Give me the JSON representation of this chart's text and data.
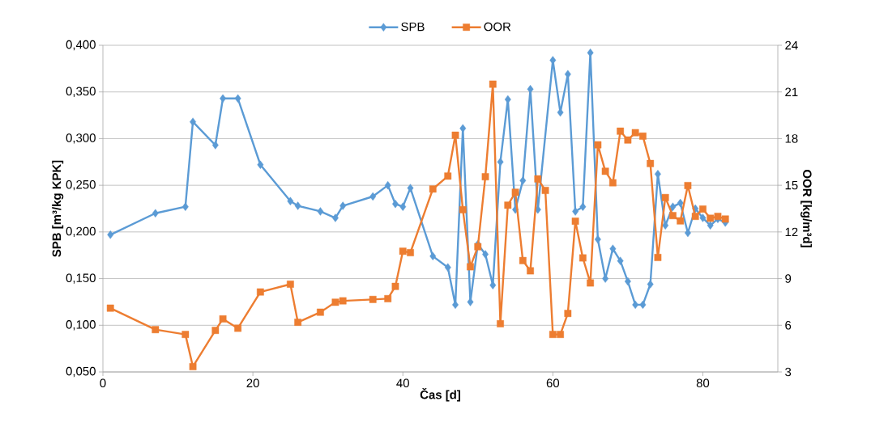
{
  "chart_data": {
    "type": "line",
    "xlabel": "Čas [d]",
    "ylabel": "SPB [m³/kg KPK]",
    "y2label": "OOR [kg/m³d]",
    "xlim": [
      0,
      90
    ],
    "xticks": [
      0,
      20,
      40,
      60,
      80
    ],
    "ylim": [
      0.05,
      0.4
    ],
    "yticks": [
      {
        "value": 0.05,
        "label": "0,050"
      },
      {
        "value": 0.1,
        "label": "0,100"
      },
      {
        "value": 0.15,
        "label": "0,150"
      },
      {
        "value": 0.2,
        "label": "0,200"
      },
      {
        "value": 0.25,
        "label": "0,250"
      },
      {
        "value": 0.3,
        "label": "0,300"
      },
      {
        "value": 0.35,
        "label": "0,350"
      },
      {
        "value": 0.4,
        "label": "0,400"
      }
    ],
    "y2lim": [
      3,
      24
    ],
    "y2ticks": [
      3,
      6,
      9,
      12,
      15,
      18,
      21,
      24
    ],
    "grid": "y",
    "legend": "top",
    "series": [
      {
        "name": "SPB",
        "color": "#5b9bd5",
        "marker": "diamond",
        "x": [
          1,
          7,
          11,
          12,
          15,
          16,
          18,
          21,
          25,
          26,
          29,
          31,
          32,
          36,
          38,
          39,
          40,
          41,
          44,
          46,
          47,
          48,
          49,
          50,
          51,
          52,
          53,
          54,
          55,
          56,
          57,
          58,
          60,
          61,
          62,
          63,
          64,
          65,
          66,
          67,
          68,
          69,
          70,
          71,
          72,
          73,
          74,
          75,
          76,
          77,
          78,
          79,
          80,
          81,
          82,
          83
        ],
        "values": [
          0.197,
          0.22,
          0.227,
          0.318,
          0.293,
          0.343,
          0.343,
          0.272,
          0.233,
          0.228,
          0.222,
          0.215,
          0.228,
          0.238,
          0.25,
          0.23,
          0.227,
          0.247,
          0.174,
          0.162,
          0.122,
          0.311,
          0.125,
          0.187,
          0.176,
          0.143,
          0.275,
          0.342,
          0.224,
          0.255,
          0.353,
          0.224,
          0.384,
          0.328,
          0.369,
          0.222,
          0.227,
          0.392,
          0.192,
          0.15,
          0.182,
          0.169,
          0.147,
          0.122,
          0.122,
          0.144,
          0.262,
          0.207,
          0.227,
          0.231,
          0.199,
          0.225,
          0.215,
          0.207,
          0.214,
          0.21
        ]
      },
      {
        "name": "OOR",
        "color": "#ed7d31",
        "marker": "square",
        "axis": "y2",
        "x": [
          1,
          7,
          11,
          12,
          15,
          16,
          18,
          21,
          25,
          26,
          29,
          31,
          32,
          36,
          38,
          39,
          40,
          41,
          44,
          46,
          47,
          48,
          49,
          50,
          51,
          52,
          53,
          54,
          55,
          56,
          57,
          58,
          59,
          60,
          61,
          62,
          63,
          64,
          65,
          66,
          67,
          68,
          69,
          70,
          71,
          72,
          73,
          74,
          75,
          76,
          77,
          78,
          79,
          80,
          81,
          82,
          83
        ],
        "values": [
          7.1,
          5.72,
          5.41,
          3.34,
          5.67,
          6.41,
          5.81,
          8.14,
          8.64,
          6.19,
          6.84,
          7.48,
          7.57,
          7.66,
          7.71,
          8.5,
          10.76,
          10.67,
          14.76,
          15.59,
          18.22,
          13.43,
          9.76,
          11.05,
          15.55,
          21.5,
          6.1,
          13.72,
          14.55,
          10.16,
          9.5,
          15.41,
          14.67,
          5.41,
          5.41,
          6.76,
          12.69,
          10.33,
          8.72,
          17.6,
          15.9,
          15.16,
          18.48,
          17.91,
          18.38,
          18.16,
          16.4,
          10.36,
          14.21,
          13.05,
          12.71,
          14.98,
          13.0,
          13.47,
          12.88,
          13.0,
          12.83
        ]
      }
    ]
  }
}
